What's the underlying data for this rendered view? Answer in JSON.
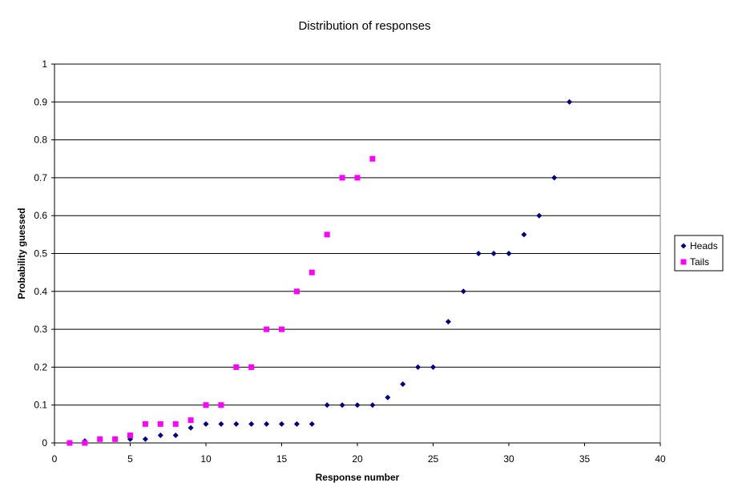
{
  "chart_data": {
    "type": "scatter",
    "title": "Distribution of responses",
    "xlabel": "Response number",
    "ylabel": "Probability guessed",
    "xlim": [
      0,
      40
    ],
    "ylim": [
      0,
      1
    ],
    "xticks": [
      0,
      5,
      10,
      15,
      20,
      25,
      30,
      35,
      40
    ],
    "yticks": [
      0,
      0.1,
      0.2,
      0.3,
      0.4,
      0.5,
      0.6,
      0.7,
      0.8,
      0.9,
      1
    ],
    "grid": "horizontal",
    "legend_position": "right",
    "series": [
      {
        "name": "Heads",
        "marker": "diamond",
        "color": "#000080",
        "points": [
          [
            1,
            0
          ],
          [
            2,
            0.005
          ],
          [
            3,
            0.01
          ],
          [
            4,
            0.01
          ],
          [
            5,
            0.01
          ],
          [
            6,
            0.01
          ],
          [
            7,
            0.02
          ],
          [
            8,
            0.02
          ],
          [
            9,
            0.04
          ],
          [
            10,
            0.05
          ],
          [
            11,
            0.05
          ],
          [
            12,
            0.05
          ],
          [
            13,
            0.05
          ],
          [
            14,
            0.05
          ],
          [
            15,
            0.05
          ],
          [
            16,
            0.05
          ],
          [
            17,
            0.05
          ],
          [
            18,
            0.1
          ],
          [
            19,
            0.1
          ],
          [
            20,
            0.1
          ],
          [
            21,
            0.1
          ],
          [
            22,
            0.12
          ],
          [
            23,
            0.155
          ],
          [
            24,
            0.2
          ],
          [
            25,
            0.2
          ],
          [
            26,
            0.32
          ],
          [
            27,
            0.4
          ],
          [
            28,
            0.5
          ],
          [
            29,
            0.5
          ],
          [
            30,
            0.5
          ],
          [
            31,
            0.55
          ],
          [
            32,
            0.6
          ],
          [
            33,
            0.7
          ],
          [
            34,
            0.9
          ]
        ]
      },
      {
        "name": "Tails",
        "marker": "square",
        "color": "#ff00ff",
        "points": [
          [
            1,
            0
          ],
          [
            2,
            0
          ],
          [
            3,
            0.01
          ],
          [
            4,
            0.01
          ],
          [
            5,
            0.02
          ],
          [
            6,
            0.05
          ],
          [
            7,
            0.05
          ],
          [
            8,
            0.05
          ],
          [
            9,
            0.06
          ],
          [
            10,
            0.1
          ],
          [
            11,
            0.1
          ],
          [
            12,
            0.2
          ],
          [
            13,
            0.2
          ],
          [
            14,
            0.3
          ],
          [
            15,
            0.3
          ],
          [
            16,
            0.4
          ],
          [
            17,
            0.45
          ],
          [
            18,
            0.55
          ],
          [
            19,
            0.7
          ],
          [
            20,
            0.7
          ],
          [
            21,
            0.75
          ]
        ]
      }
    ]
  }
}
